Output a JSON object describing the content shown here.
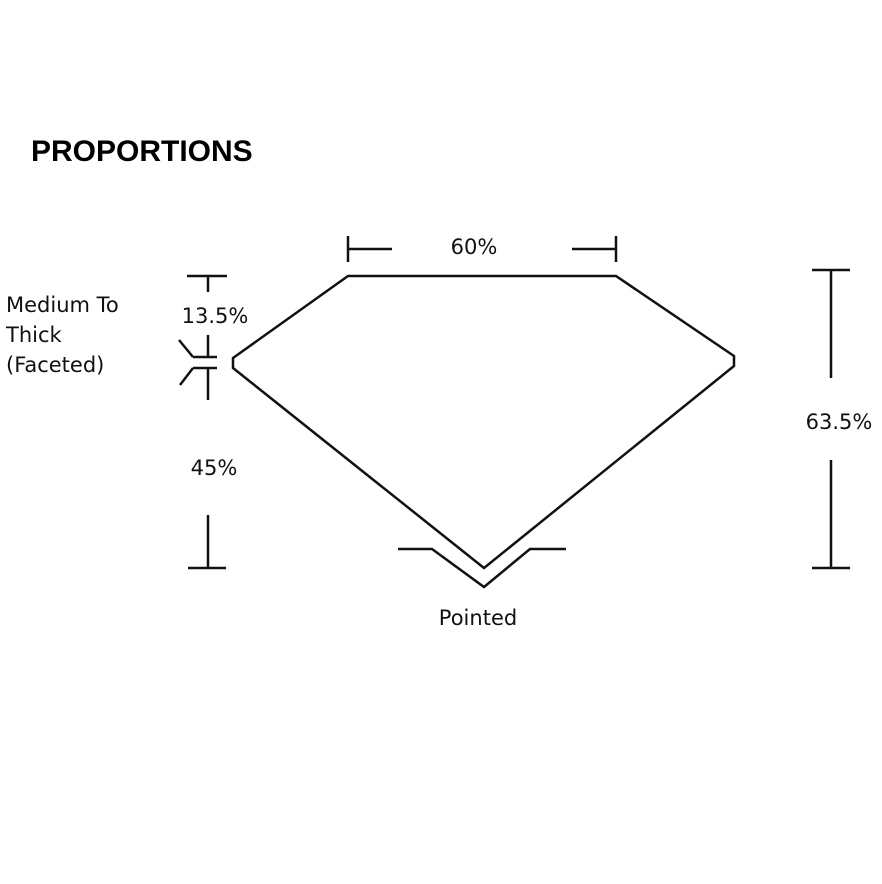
{
  "title": "PROPORTIONS",
  "labels": {
    "table": "60%",
    "crown": "13.5%",
    "pavilion": "45%",
    "depth": "63.5%",
    "girdle_lines": [
      "Medium To",
      "Thick",
      "(Faceted)"
    ],
    "culet": "Pointed"
  }
}
